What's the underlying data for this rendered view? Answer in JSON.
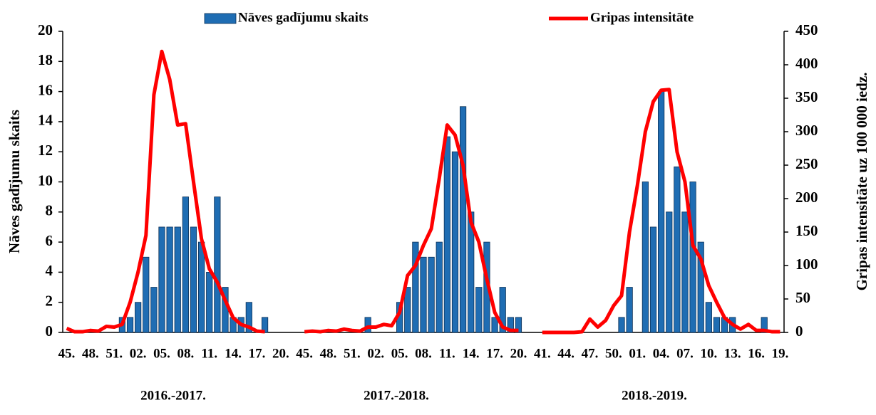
{
  "chart_data": {
    "type": "bar",
    "legend": "top",
    "ylabel": "Nāves gadījumu skaits",
    "y2label": "Gripas intensitāte uz 100 000 iedz.",
    "ylim": [
      0,
      20
    ],
    "yticks": [
      0,
      2,
      4,
      6,
      8,
      10,
      12,
      14,
      16,
      18,
      20
    ],
    "y2lim": [
      0,
      450
    ],
    "y2ticks": [
      0,
      50,
      100,
      150,
      200,
      250,
      300,
      350,
      400,
      450
    ],
    "groups": [
      "2016.-2017.",
      "2017.-2018.",
      "2018.-2019."
    ],
    "categories": [
      "45.",
      null,
      null,
      "48.",
      null,
      null,
      "51.",
      null,
      null,
      "02.",
      null,
      null,
      "05.",
      null,
      null,
      "08.",
      null,
      null,
      "11.",
      null,
      null,
      "14.",
      null,
      null,
      "17.",
      null,
      null,
      "20.",
      null,
      null,
      "45.",
      null,
      null,
      "48.",
      null,
      null,
      "51.",
      null,
      null,
      "02.",
      null,
      null,
      "05.",
      null,
      null,
      "08.",
      null,
      null,
      "11.",
      null,
      null,
      "14.",
      null,
      null,
      "17.",
      null,
      null,
      "20.",
      null,
      null,
      "41.",
      null,
      null,
      "44.",
      null,
      null,
      "47.",
      null,
      null,
      "50.",
      null,
      null,
      "01.",
      null,
      null,
      "04.",
      null,
      null,
      "07.",
      null,
      null,
      "10.",
      null,
      null,
      "13.",
      null,
      null,
      "16.",
      null,
      null,
      "19."
    ],
    "series": [
      {
        "name": "Nāves gadījumu skaits",
        "type": "bar",
        "color": "#1f6db3",
        "values": [
          0,
          0,
          0,
          0,
          0,
          0,
          0,
          1,
          1,
          2,
          5,
          3,
          7,
          7,
          7,
          9,
          7,
          6,
          4,
          9,
          3,
          1,
          1,
          2,
          0,
          1,
          0,
          0,
          null,
          null,
          0,
          0,
          0,
          0,
          0,
          0,
          0,
          0,
          1,
          0,
          0,
          0,
          2,
          3,
          6,
          5,
          5,
          6,
          13,
          12,
          15,
          8,
          3,
          6,
          1,
          3,
          1,
          1,
          null,
          null,
          0,
          0,
          0,
          0,
          0,
          0,
          0,
          0,
          0,
          0,
          1,
          3,
          0,
          10,
          7,
          16,
          8,
          11,
          8,
          10,
          6,
          2,
          1,
          1,
          1,
          0,
          0,
          0,
          1,
          0,
          0
        ]
      },
      {
        "name": "Gripas intensitāte",
        "type": "line",
        "axis": "y2",
        "color": "#ff0000",
        "values": [
          6,
          1,
          1,
          3,
          2,
          9,
          8,
          12,
          45,
          90,
          145,
          355,
          420,
          378,
          310,
          312,
          225,
          140,
          95,
          75,
          48,
          22,
          12,
          8,
          2,
          1,
          null,
          null,
          null,
          null,
          1,
          2,
          1,
          3,
          2,
          5,
          3,
          2,
          8,
          8,
          12,
          10,
          30,
          85,
          100,
          130,
          155,
          230,
          310,
          295,
          250,
          165,
          135,
          80,
          30,
          8,
          3,
          3,
          null,
          null,
          0,
          0,
          0,
          0,
          0,
          1,
          20,
          8,
          18,
          40,
          55,
          150,
          220,
          300,
          345,
          362,
          363,
          270,
          225,
          130,
          110,
          70,
          45,
          22,
          12,
          5,
          12,
          3,
          3,
          1,
          1
        ]
      }
    ]
  }
}
